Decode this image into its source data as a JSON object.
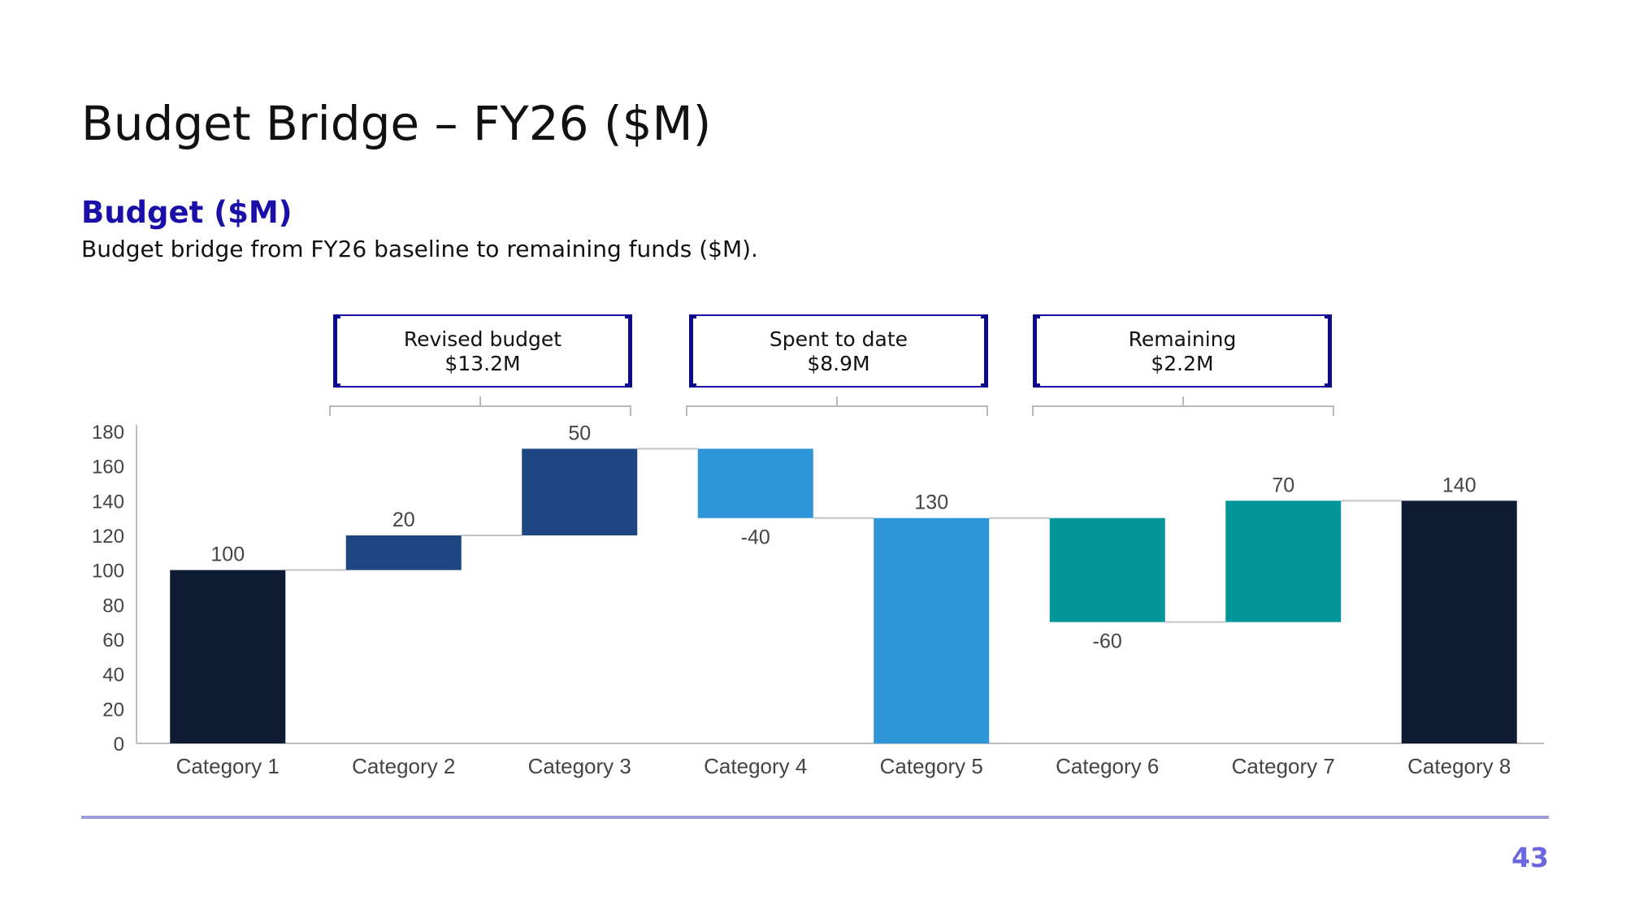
{
  "slide": {
    "title": "Budget Bridge – FY26 ($M)",
    "section_title": "Budget ($M)",
    "subtitle": "Budget bridge from FY26 baseline to remaining funds ($M).",
    "page_number": "43"
  },
  "callouts": [
    {
      "label": "Revised budget",
      "value": "$13.2M"
    },
    {
      "label": "Spent to date",
      "value": "$8.9M"
    },
    {
      "label": "Remaining",
      "value": "$2.2M"
    }
  ],
  "colors": {
    "accent": "#1a0fa8",
    "total": "#0f1b32",
    "dark_blue": "#1e4680",
    "light_blue": "#2e96d8",
    "teal": "#02959a",
    "footer_rule": "#9c9bdc",
    "page_number": "#6a67e0"
  },
  "chart_data": {
    "type": "bar",
    "subtype": "waterfall",
    "categories": [
      "Category 1",
      "Category 2",
      "Category 3",
      "Category 4",
      "Category 5",
      "Category 6",
      "Category 7",
      "Category 8"
    ],
    "values": [
      100,
      20,
      50,
      -40,
      130,
      -60,
      70,
      140
    ],
    "data_labels": [
      "100",
      "20",
      "50",
      "-40",
      "130",
      "-60",
      "70",
      "140"
    ],
    "bars": [
      {
        "base": 0,
        "top": 100,
        "color": "#0f1b32"
      },
      {
        "base": 100,
        "top": 120,
        "color": "#1e4680"
      },
      {
        "base": 120,
        "top": 170,
        "color": "#1e4680"
      },
      {
        "base": 130,
        "top": 170,
        "color": "#2e96d8"
      },
      {
        "base": 0,
        "top": 130,
        "color": "#2e96d8"
      },
      {
        "base": 70,
        "top": 130,
        "color": "#02959a"
      },
      {
        "base": 70,
        "top": 140,
        "color": "#02959a"
      },
      {
        "base": 0,
        "top": 140,
        "color": "#0f1b32"
      }
    ],
    "connectors": [
      100,
      120,
      170,
      130,
      130,
      70,
      140
    ],
    "yticks": [
      0,
      20,
      40,
      60,
      80,
      100,
      120,
      140,
      160,
      180
    ],
    "ylim": [
      0,
      180
    ],
    "grid": false,
    "legend": "none",
    "xlabel": "",
    "ylabel": ""
  }
}
